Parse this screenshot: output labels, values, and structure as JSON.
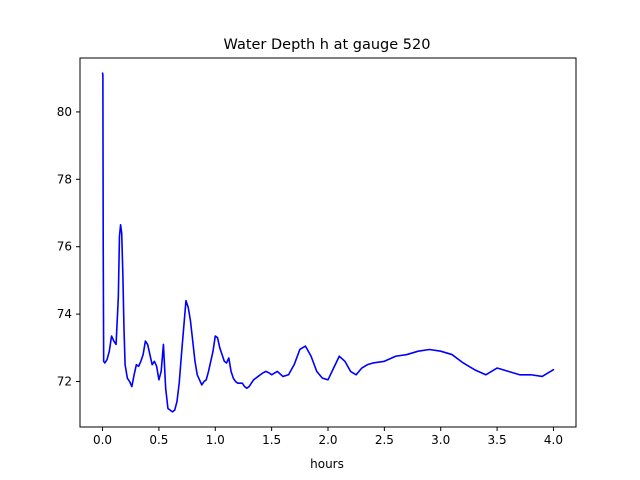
{
  "chart_data": {
    "type": "line",
    "title": "Water Depth h at gauge 520",
    "xlabel": "hours",
    "ylabel": "",
    "xlim": [
      -0.2,
      4.2
    ],
    "ylim": [
      70.65,
      81.6
    ],
    "xticks": [
      0.0,
      0.5,
      1.0,
      1.5,
      2.0,
      2.5,
      3.0,
      3.5,
      4.0
    ],
    "xtick_labels": [
      "0.0",
      "0.5",
      "1.0",
      "1.5",
      "2.0",
      "2.5",
      "3.0",
      "3.5",
      "4.0"
    ],
    "yticks": [
      72,
      74,
      76,
      78,
      80
    ],
    "ytick_labels": [
      "72",
      "74",
      "76",
      "78",
      "80"
    ],
    "grid": false,
    "line_color": "#0000ff",
    "series": [
      {
        "x": [
          0.0,
          0.003,
          0.006,
          0.01,
          0.02,
          0.04,
          0.06,
          0.08,
          0.1,
          0.12,
          0.14,
          0.15,
          0.16,
          0.17,
          0.18,
          0.19,
          0.2,
          0.22,
          0.24,
          0.26,
          0.28,
          0.3,
          0.32,
          0.34,
          0.36,
          0.38,
          0.4,
          0.42,
          0.44,
          0.46,
          0.48,
          0.5,
          0.52,
          0.54,
          0.56,
          0.58,
          0.6,
          0.62,
          0.64,
          0.66,
          0.68,
          0.7,
          0.72,
          0.74,
          0.76,
          0.78,
          0.8,
          0.82,
          0.84,
          0.86,
          0.88,
          0.9,
          0.92,
          0.94,
          0.96,
          0.98,
          1.0,
          1.02,
          1.04,
          1.06,
          1.08,
          1.1,
          1.12,
          1.14,
          1.16,
          1.18,
          1.2,
          1.22,
          1.24,
          1.26,
          1.28,
          1.3,
          1.32,
          1.34,
          1.36,
          1.38,
          1.4,
          1.42,
          1.45,
          1.48,
          1.5,
          1.55,
          1.6,
          1.65,
          1.7,
          1.75,
          1.8,
          1.85,
          1.9,
          1.95,
          2.0,
          2.05,
          2.1,
          2.15,
          2.2,
          2.25,
          2.3,
          2.35,
          2.4,
          2.5,
          2.6,
          2.7,
          2.8,
          2.9,
          3.0,
          3.1,
          3.2,
          3.3,
          3.4,
          3.5,
          3.6,
          3.7,
          3.8,
          3.9,
          4.0
        ],
        "y": [
          81.15,
          81.1,
          76.0,
          72.6,
          72.55,
          72.65,
          72.9,
          73.35,
          73.2,
          73.1,
          74.5,
          76.3,
          76.65,
          76.4,
          75.2,
          73.6,
          72.5,
          72.1,
          72.0,
          71.85,
          72.2,
          72.5,
          72.45,
          72.6,
          72.8,
          73.2,
          73.1,
          72.8,
          72.5,
          72.6,
          72.45,
          72.05,
          72.3,
          73.1,
          71.8,
          71.2,
          71.15,
          71.1,
          71.15,
          71.4,
          71.95,
          72.8,
          73.6,
          74.4,
          74.2,
          73.8,
          73.2,
          72.6,
          72.2,
          72.05,
          71.9,
          72.0,
          72.05,
          72.3,
          72.6,
          72.9,
          73.35,
          73.3,
          73.0,
          72.8,
          72.6,
          72.55,
          72.7,
          72.3,
          72.1,
          72.0,
          71.95,
          71.95,
          71.95,
          71.85,
          71.8,
          71.85,
          71.95,
          72.05,
          72.1,
          72.15,
          72.2,
          72.25,
          72.3,
          72.25,
          72.2,
          72.3,
          72.15,
          72.2,
          72.5,
          72.95,
          73.05,
          72.75,
          72.3,
          72.1,
          72.05,
          72.4,
          72.75,
          72.6,
          72.3,
          72.2,
          72.4,
          72.5,
          72.55,
          72.6,
          72.75,
          72.8,
          72.9,
          72.95,
          72.9,
          72.8,
          72.55,
          72.35,
          72.2,
          72.4,
          72.3,
          72.2,
          72.2,
          72.15,
          72.35
        ]
      }
    ]
  }
}
